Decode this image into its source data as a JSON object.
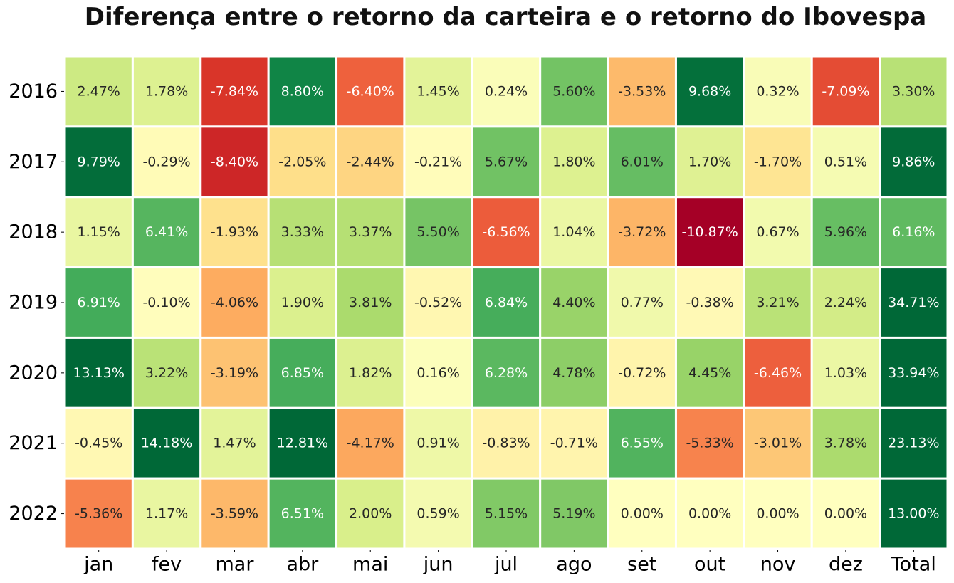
{
  "chart_data": {
    "type": "heatmap",
    "title": "Diferença entre o retorno da carteira e o retorno do Ibovespa",
    "columns": [
      "jan",
      "fev",
      "mar",
      "abr",
      "mai",
      "jun",
      "jul",
      "ago",
      "set",
      "out",
      "nov",
      "dez",
      "Total"
    ],
    "rows": [
      "2016",
      "2017",
      "2018",
      "2019",
      "2020",
      "2021",
      "2022"
    ],
    "values": [
      [
        2.47,
        1.78,
        -7.84,
        8.8,
        -6.4,
        1.45,
        0.24,
        5.6,
        -3.53,
        9.68,
        0.32,
        -7.09,
        3.3
      ],
      [
        9.79,
        -0.29,
        -8.4,
        -2.05,
        -2.44,
        -0.21,
        5.67,
        1.8,
        6.01,
        1.7,
        -1.7,
        0.51,
        9.86
      ],
      [
        1.15,
        6.41,
        -1.93,
        3.33,
        3.37,
        5.5,
        -6.56,
        1.04,
        -3.72,
        -10.87,
        0.67,
        5.96,
        6.16
      ],
      [
        6.91,
        -0.1,
        -4.06,
        1.9,
        3.81,
        -0.52,
        6.84,
        4.4,
        0.77,
        -0.38,
        3.21,
        2.24,
        34.71
      ],
      [
        13.13,
        3.22,
        -3.19,
        6.85,
        1.82,
        0.16,
        6.28,
        4.78,
        -0.72,
        4.45,
        -6.46,
        1.03,
        33.94
      ],
      [
        -0.45,
        14.18,
        1.47,
        12.81,
        -4.17,
        0.91,
        -0.83,
        -0.71,
        6.55,
        -5.33,
        -3.01,
        3.78,
        23.13
      ],
      [
        -5.36,
        1.17,
        -3.59,
        6.51,
        2.0,
        0.59,
        5.15,
        5.19,
        0.0,
        0.0,
        0.0,
        0.0,
        13.0
      ]
    ],
    "labels": [
      [
        "2.47%",
        "1.78%",
        "-7.84%",
        "8.80%",
        "-6.40%",
        "1.45%",
        "0.24%",
        "5.60%",
        "-3.53%",
        "9.68%",
        "0.32%",
        "-7.09%",
        "3.30%"
      ],
      [
        "9.79%",
        "-0.29%",
        "-8.40%",
        "-2.05%",
        "-2.44%",
        "-0.21%",
        "5.67%",
        "1.80%",
        "6.01%",
        "1.70%",
        "-1.70%",
        "0.51%",
        "9.86%"
      ],
      [
        "1.15%",
        "6.41%",
        "-1.93%",
        "3.33%",
        "3.37%",
        "5.50%",
        "-6.56%",
        "1.04%",
        "-3.72%",
        "-10.87%",
        "0.67%",
        "5.96%",
        "6.16%"
      ],
      [
        "6.91%",
        "-0.10%",
        "-4.06%",
        "1.90%",
        "3.81%",
        "-0.52%",
        "6.84%",
        "4.40%",
        "0.77%",
        "-0.38%",
        "3.21%",
        "2.24%",
        "34.71%"
      ],
      [
        "13.13%",
        "3.22%",
        "-3.19%",
        "6.85%",
        "1.82%",
        "0.16%",
        "6.28%",
        "4.78%",
        "-0.72%",
        "4.45%",
        "-6.46%",
        "1.03%",
        "33.94%"
      ],
      [
        "-0.45%",
        "14.18%",
        "1.47%",
        "12.81%",
        "-4.17%",
        "0.91%",
        "-0.83%",
        "-0.71%",
        "6.55%",
        "-5.33%",
        "-3.01%",
        "3.78%",
        "23.13%"
      ],
      [
        "-5.36%",
        "1.17%",
        "-3.59%",
        "6.51%",
        "2.00%",
        "0.59%",
        "5.15%",
        "5.19%",
        "0.00%",
        "0.00%",
        "0.00%",
        "0.00%",
        "13.00%"
      ]
    ],
    "colormap": "RdYlGn",
    "color_range": [
      -10,
      10
    ],
    "grid": false,
    "legend": "none"
  }
}
